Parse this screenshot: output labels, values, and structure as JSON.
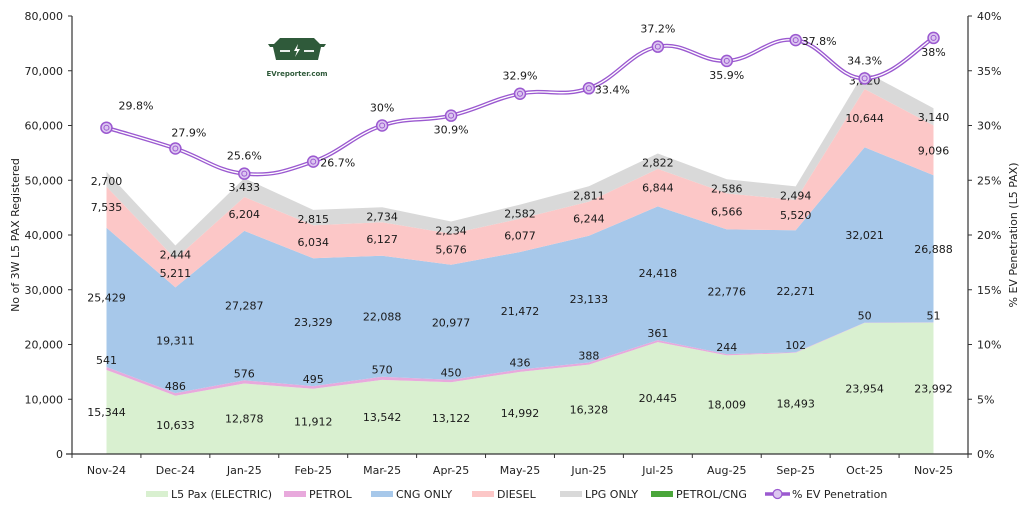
{
  "chart_data": {
    "type": "area",
    "stacked": true,
    "title": "",
    "xlabel": "",
    "ylabel": "No of 3W L5 PAX Registered",
    "y2label": "% EV Penetration (L5 PAX)",
    "ylim": [
      0,
      80000
    ],
    "y2lim": [
      0,
      40
    ],
    "yticks": [
      "0",
      "10,000",
      "20,000",
      "30,000",
      "40,000",
      "50,000",
      "60,000",
      "70,000",
      "80,000"
    ],
    "y2ticks": [
      "0%",
      "5%",
      "10%",
      "15%",
      "20%",
      "25%",
      "30%",
      "35%",
      "40%"
    ],
    "categories": [
      "Nov-24",
      "Dec-24",
      "Jan-25",
      "Feb-25",
      "Mar-25",
      "Apr-25",
      "May-25",
      "Jun-25",
      "Jul-25",
      "Aug-25",
      "Sep-25",
      "Oct-25",
      "Nov-25"
    ],
    "series": [
      {
        "name": "L5 Pax (ELECTRIC)",
        "color": "#d9f0d0",
        "values": [
          15344,
          10633,
          12878,
          11912,
          13542,
          13122,
          14992,
          16328,
          20445,
          18009,
          18493,
          23954,
          23992
        ],
        "labels": [
          "15,344",
          "10,633",
          "12,878",
          "11,912",
          "13,542",
          "13,122",
          "14,992",
          "16,328",
          "20,445",
          "18,009",
          "18,493",
          "23,954",
          "23,992"
        ]
      },
      {
        "name": "PETROL",
        "color": "#e8a9dc",
        "values": [
          541,
          486,
          576,
          495,
          570,
          450,
          436,
          388,
          361,
          244,
          102,
          50,
          51
        ],
        "labels": [
          "541",
          "486",
          "576",
          "495",
          "570",
          "450",
          "436",
          "388",
          "361",
          "244",
          "102",
          "50",
          "51"
        ]
      },
      {
        "name": "CNG ONLY",
        "color": "#a7c8ea",
        "values": [
          25429,
          19311,
          27287,
          23329,
          22088,
          20977,
          21472,
          23133,
          24418,
          22776,
          22271,
          32021,
          26888
        ],
        "labels": [
          "25,429",
          "19,311",
          "27,287",
          "23,329",
          "22,088",
          "20,977",
          "21,472",
          "23,133",
          "24,418",
          "22,776",
          "22,271",
          "32,021",
          "26,888"
        ]
      },
      {
        "name": "DIESEL",
        "color": "#fcc7c7",
        "values": [
          7535,
          5211,
          6204,
          6034,
          6127,
          5676,
          6077,
          6244,
          6844,
          6566,
          5520,
          10644,
          9096
        ],
        "labels": [
          "7,535",
          "5,211",
          "6,204",
          "6,034",
          "6,127",
          "5,676",
          "6,077",
          "6,244",
          "6,844",
          "6,566",
          "5,520",
          "10,644",
          "9,096"
        ]
      },
      {
        "name": "LPG ONLY",
        "color": "#d9d9d9",
        "values": [
          2700,
          2444,
          3433,
          2815,
          2734,
          2234,
          2582,
          2811,
          2822,
          2586,
          2494,
          3220,
          3140
        ],
        "labels": [
          "2,700",
          "2,444",
          "3,433",
          "2,815",
          "2,734",
          "2,234",
          "2,582",
          "2,811",
          "2,822",
          "2,586",
          "2,494",
          "3,220",
          "3,140"
        ]
      },
      {
        "name": "PETROL/CNG",
        "color": "#4aa63a",
        "values": [
          0,
          0,
          0,
          0,
          0,
          0,
          0,
          0,
          0,
          0,
          0,
          0,
          0
        ],
        "labels": []
      }
    ],
    "line_series": {
      "name": "% EV Penetration",
      "color": "#9b59d0",
      "axis": "right",
      "values": [
        29.8,
        27.9,
        25.6,
        26.7,
        30,
        30.9,
        32.9,
        33.4,
        37.2,
        35.9,
        37.8,
        34.3,
        38
      ],
      "labels": [
        "29.8%",
        "27.9%",
        "25.6%",
        "26.7%",
        "30%",
        "30.9%",
        "32.9%",
        "33.4%",
        "37.2%",
        "35.9%",
        "37.8%",
        "34.3%",
        "38%"
      ]
    },
    "legend": {
      "position": "bottom",
      "items": [
        "L5 Pax (ELECTRIC)",
        "PETROL",
        "CNG ONLY",
        "DIESEL",
        "LPG ONLY",
        "PETROL/CNG",
        "% EV Penetration"
      ]
    },
    "grid": false
  },
  "logo": {
    "text": "EVreporter.com"
  }
}
